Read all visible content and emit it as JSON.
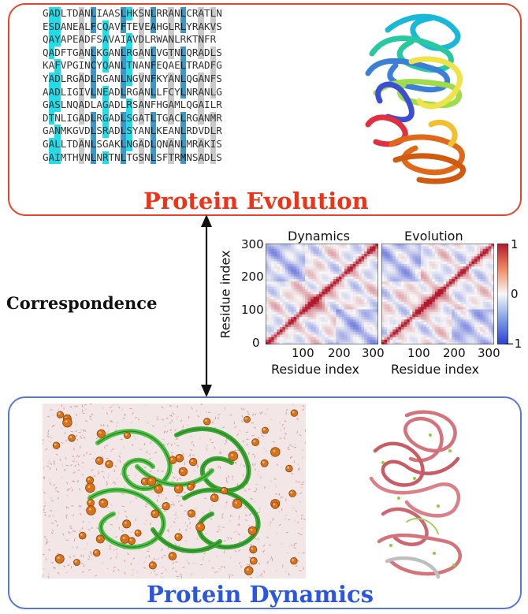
{
  "top": {
    "title": "Protein Evolution",
    "sequences": [
      "GADLTDANLIAASLHKSNLRRANLCRATLN",
      "ESDANEALFCQAVFTEVEAHGLRLYRAKVS",
      "QAYAPEADFSAVAIAVDLRWANLRKTNFR",
      "QADFTGANLKGANLRGANLVGTNLQRADLS",
      "KAFVPGINCYQANLTNANFEQAELTRADFG",
      "YADLRGADLRGANLNGVNFKYANLQGANFS",
      "AADLIGIVLNEADLRGANLLFCYLNRANLG",
      "GASLNQADLAGADLRSANFHGAMLQGAILR",
      "DTNLIGADLRGADLSGATLTGACLRGANMR",
      "GANMKGVDLSRADLSYANLKEANLRDVDLR",
      "GALLTDANLSGAKLNGADLQNANLMRAKIS",
      "GAIMTHVNLNRTNLTGSNLSFTRMNSADLS"
    ],
    "highlight_colors": {
      "cyan": "#22dde8",
      "blue": "#3a99c8",
      "gray": "#c9c9c9"
    }
  },
  "middle": {
    "correspondence_label": "Correspondence",
    "heatmap_left_title": "Dynamics",
    "heatmap_right_title": "Evolution",
    "ylabel": "Residue index",
    "xlabel_left": "Residue index",
    "xlabel_right": "Residue index",
    "yticks": [
      "0",
      "100",
      "200",
      "300"
    ],
    "xticks_left": [
      "100",
      "200",
      "300"
    ],
    "xticks_right": [
      "100",
      "200",
      "300"
    ],
    "colorbar_ticks": [
      "1",
      "0",
      "−1"
    ],
    "colorbar_colors": {
      "high": "#b2182b",
      "mid": "#f7f7f7",
      "low": "#2c3fd0"
    }
  },
  "bottom": {
    "title": "Protein Dynamics"
  },
  "chart_data": {
    "type": "heatmap",
    "panels": [
      "Dynamics",
      "Evolution"
    ],
    "xlabel": "Residue index",
    "ylabel": "Residue index",
    "xlim": [
      0,
      300
    ],
    "ylim": [
      0,
      300
    ],
    "color_range": [
      -1,
      1
    ]
  }
}
